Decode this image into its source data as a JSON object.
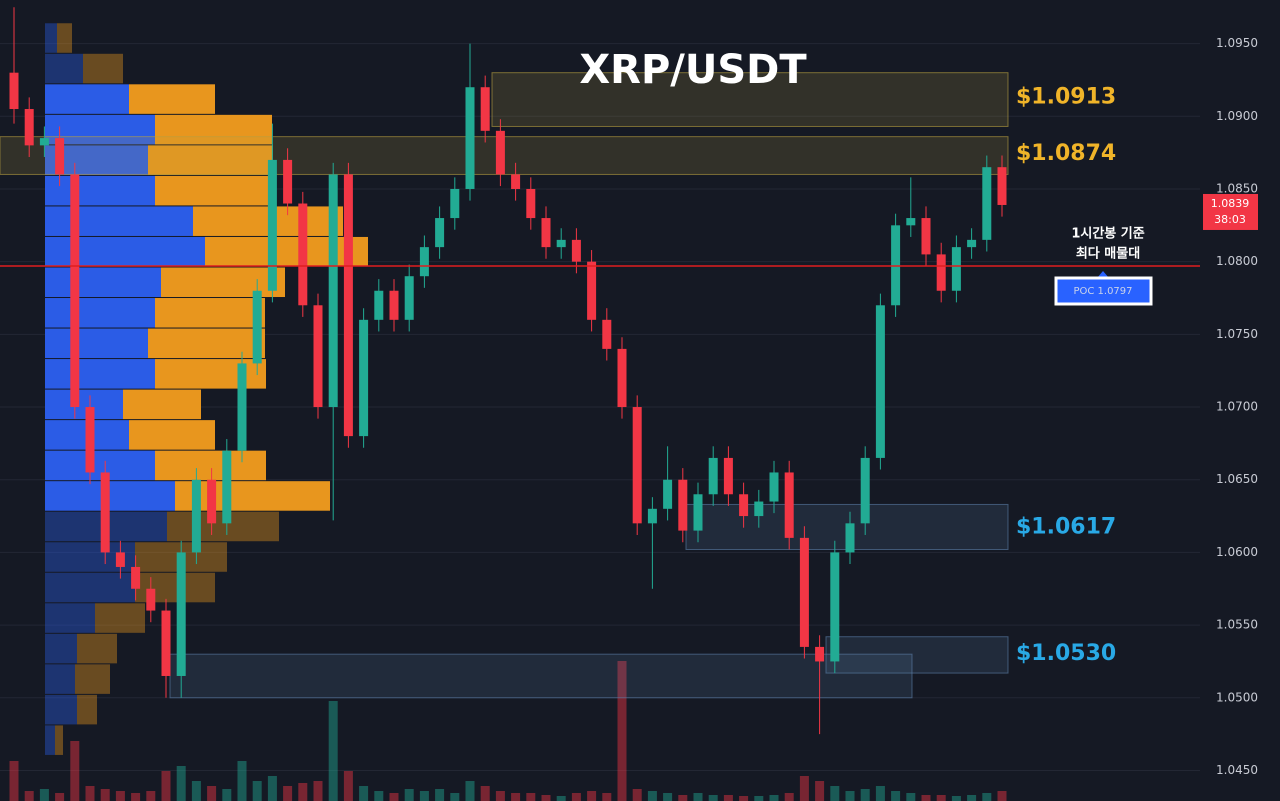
{
  "chart_data": {
    "type": "candlestick",
    "title": "XRP/USDT",
    "ylim": [
      1.0429,
      1.098
    ],
    "yticks": [
      {
        "value": 1.045,
        "label": "1.0450"
      },
      {
        "value": 1.05,
        "label": "1.0500"
      },
      {
        "value": 1.055,
        "label": "1.0550"
      },
      {
        "value": 1.06,
        "label": "1.0600"
      },
      {
        "value": 1.065,
        "label": "1.0650"
      },
      {
        "value": 1.07,
        "label": "1.0700"
      },
      {
        "value": 1.075,
        "label": "1.0750"
      },
      {
        "value": 1.08,
        "label": "1.0800"
      },
      {
        "value": 1.085,
        "label": "1.0850"
      },
      {
        "value": 1.09,
        "label": "1.0900"
      },
      {
        "value": 1.095,
        "label": "1.0950"
      }
    ],
    "grid": true,
    "up_color": "#22ab94",
    "down_color": "#f23645",
    "open": [
      1.093,
      1.0905,
      1.088,
      1.0885,
      1.086,
      1.07,
      1.0655,
      1.06,
      1.059,
      1.0575,
      1.056,
      1.0515,
      1.06,
      1.065,
      1.062,
      1.067,
      1.073,
      1.078,
      1.087,
      1.084,
      1.077,
      1.07,
      1.086,
      1.068,
      1.076,
      1.078,
      1.076,
      1.079,
      1.081,
      1.083,
      1.085,
      1.092,
      1.089,
      1.086,
      1.085,
      1.083,
      1.081,
      1.0815,
      1.08,
      1.076,
      1.074,
      1.07,
      1.062,
      1.063,
      1.065,
      1.0615,
      1.064,
      1.0665,
      1.064,
      1.0625,
      1.0635,
      1.0655,
      1.061,
      1.0535,
      1.0525,
      1.06,
      1.062,
      1.0665,
      1.077,
      1.0825,
      1.083,
      1.0805,
      1.078,
      1.081,
      1.0815,
      1.0865
    ],
    "high": [
      1.0975,
      1.0913,
      1.0893,
      1.0893,
      1.0868,
      1.0708,
      1.0663,
      1.0608,
      1.0598,
      1.0583,
      1.0568,
      1.0608,
      1.0658,
      1.0658,
      1.0678,
      1.0738,
      1.0788,
      1.0895,
      1.0878,
      1.0848,
      1.0778,
      1.0868,
      1.0868,
      1.0768,
      1.0788,
      1.0788,
      1.0798,
      1.0818,
      1.0838,
      1.0858,
      1.095,
      1.0928,
      1.0898,
      1.0868,
      1.0858,
      1.0838,
      1.0823,
      1.0823,
      1.0808,
      1.0768,
      1.0748,
      1.0708,
      1.0638,
      1.0673,
      1.0658,
      1.0648,
      1.0673,
      1.0673,
      1.0648,
      1.0643,
      1.0663,
      1.0663,
      1.0618,
      1.0543,
      1.0608,
      1.0628,
      1.0673,
      1.0778,
      1.0833,
      1.0858,
      1.0838,
      1.0813,
      1.0818,
      1.0823,
      1.0873,
      1.0873
    ],
    "low": [
      1.0895,
      1.0872,
      1.0872,
      1.0852,
      1.0692,
      1.0647,
      1.0592,
      1.0582,
      1.0567,
      1.0552,
      1.05,
      1.05,
      1.0592,
      1.0612,
      1.0612,
      1.0662,
      1.0722,
      1.0772,
      1.0832,
      1.0762,
      1.0692,
      1.0622,
      1.0672,
      1.0672,
      1.0752,
      1.0752,
      1.0752,
      1.0782,
      1.0802,
      1.0822,
      1.0842,
      1.0882,
      1.0852,
      1.0842,
      1.0822,
      1.0802,
      1.0802,
      1.0792,
      1.0752,
      1.0732,
      1.0692,
      1.0612,
      1.0575,
      1.0622,
      1.0607,
      1.0607,
      1.0632,
      1.0632,
      1.0617,
      1.0617,
      1.0627,
      1.0602,
      1.0527,
      1.0475,
      1.0517,
      1.0592,
      1.0612,
      1.0657,
      1.0762,
      1.0817,
      1.0797,
      1.0772,
      1.0772,
      1.0802,
      1.0807,
      1.0831
    ],
    "close": [
      1.0905,
      1.088,
      1.0885,
      1.086,
      1.07,
      1.0655,
      1.06,
      1.059,
      1.0575,
      1.056,
      1.0515,
      1.06,
      1.065,
      1.062,
      1.067,
      1.073,
      1.078,
      1.087,
      1.084,
      1.077,
      1.07,
      1.086,
      1.068,
      1.076,
      1.078,
      1.076,
      1.079,
      1.081,
      1.083,
      1.085,
      1.092,
      1.089,
      1.086,
      1.085,
      1.083,
      1.081,
      1.0815,
      1.08,
      1.076,
      1.074,
      1.07,
      1.062,
      1.063,
      1.065,
      1.0615,
      1.064,
      1.0665,
      1.064,
      1.0625,
      1.0635,
      1.0655,
      1.061,
      1.0535,
      1.0525,
      1.06,
      1.062,
      1.0665,
      1.077,
      1.0825,
      1.083,
      1.0805,
      1.078,
      1.081,
      1.0815,
      1.0865,
      1.0839
    ],
    "volumes": [
      40,
      10,
      12,
      8,
      60,
      15,
      12,
      10,
      8,
      10,
      30,
      35,
      20,
      15,
      12,
      40,
      20,
      25,
      15,
      18,
      20,
      100,
      30,
      15,
      10,
      8,
      12,
      10,
      12,
      8,
      20,
      15,
      10,
      8,
      8,
      6,
      5,
      8,
      10,
      8,
      140,
      12,
      10,
      8,
      6,
      8,
      6,
      6,
      5,
      5,
      6,
      8,
      25,
      20,
      15,
      10,
      12,
      15,
      10,
      8,
      6,
      6,
      5,
      6,
      8,
      10
    ],
    "countdown": "38:03",
    "profile": {
      "bins": [
        1.046,
        1.0481,
        1.0502,
        1.0523,
        1.0544,
        1.0565,
        1.0586,
        1.0607,
        1.0628,
        1.0649,
        1.067,
        1.0691,
        1.0712,
        1.0733,
        1.0754,
        1.0775,
        1.0796,
        1.0817,
        1.0838,
        1.0859,
        1.088,
        1.0901,
        1.0922,
        1.0943,
        1.0964
      ],
      "buy": [
        10,
        32,
        30,
        32,
        50,
        90,
        90,
        122,
        130,
        110,
        84,
        78,
        110,
        103,
        110,
        116,
        160,
        148,
        110,
        103,
        110,
        84,
        38,
        12
      ],
      "sell": [
        8,
        20,
        35,
        40,
        50,
        80,
        92,
        112,
        155,
        111,
        86,
        78,
        111,
        117,
        110,
        124,
        163,
        150,
        117,
        125,
        117,
        86,
        40,
        15
      ],
      "value_area": [
        1.0628,
        1.0922
      ],
      "buy_color": "#2b5ce6",
      "sell_color": "#e8961e"
    },
    "poc": {
      "value": 1.0797,
      "label": "POC  1.0797",
      "color": "#e01e1e"
    },
    "annotation": [
      "1시간봉 기준",
      "최다 매물대"
    ],
    "zones": [
      {
        "low": 1.0893,
        "high": 1.093,
        "color": "#b8a040",
        "label": {
          "value": 1.0913,
          "label": "$1.0913"
        },
        "label_color": "#f0b429"
      },
      {
        "low": 1.086,
        "high": 1.0886,
        "color": "#b8a040",
        "label": {
          "value": 1.0874,
          "label": "$1.0874"
        },
        "label_color": "#f0b429"
      },
      {
        "low": 1.0602,
        "high": 1.0633,
        "color": "#5b7fa8",
        "label": {
          "value": 1.0617,
          "label": "$1.0617"
        },
        "label_color": "#29a9e6"
      },
      {
        "low": 1.0517,
        "high": 1.0542,
        "color": "#5b7fa8",
        "label": {
          "value": 1.053,
          "label": "$1.0530"
        },
        "label_color": "#29a9e6"
      },
      {
        "low": 1.05,
        "high": 1.053,
        "color": "#5b7fa8"
      }
    ]
  }
}
